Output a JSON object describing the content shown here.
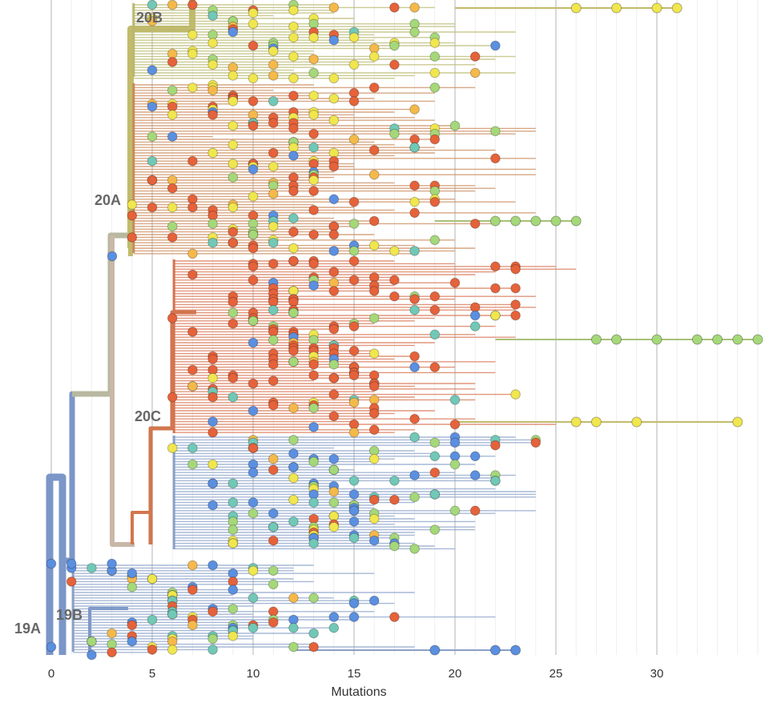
{
  "chart_data": {
    "type": "phylogenetic-tree",
    "xlabel": "Mutations",
    "xlim": [
      0,
      35
    ],
    "x_ticks": [
      0,
      5,
      10,
      15,
      20,
      25,
      30
    ],
    "x_tick_labels": [
      "0",
      "5",
      "10",
      "15",
      "20",
      "25",
      "30"
    ],
    "minor_grid_step": 1,
    "grid": true,
    "clades": [
      {
        "name": "19A",
        "x": 0
      },
      {
        "name": "19B",
        "x": 2
      },
      {
        "name": "20A",
        "x": 3
      },
      {
        "name": "20B",
        "x": 4
      },
      {
        "name": "20C",
        "x": 5
      }
    ],
    "tip_colors": [
      "#e5623a",
      "#f0e64e",
      "#a5d879",
      "#71c8b6",
      "#5b8fe0",
      "#f5b94a"
    ],
    "highlighted_tips": [
      {
        "group": "20B",
        "mutations": [
          26,
          28,
          30,
          31
        ]
      },
      {
        "group": "20A",
        "mutations": [
          22,
          23,
          24,
          25,
          26
        ]
      },
      {
        "group": "20C",
        "mutations": [
          27,
          28,
          30,
          32,
          33,
          34,
          35
        ]
      },
      {
        "group": "20C",
        "mutations": [
          26,
          27,
          29,
          34
        ]
      },
      {
        "group": "19A",
        "mutations": [
          19,
          22,
          23
        ]
      }
    ]
  }
}
